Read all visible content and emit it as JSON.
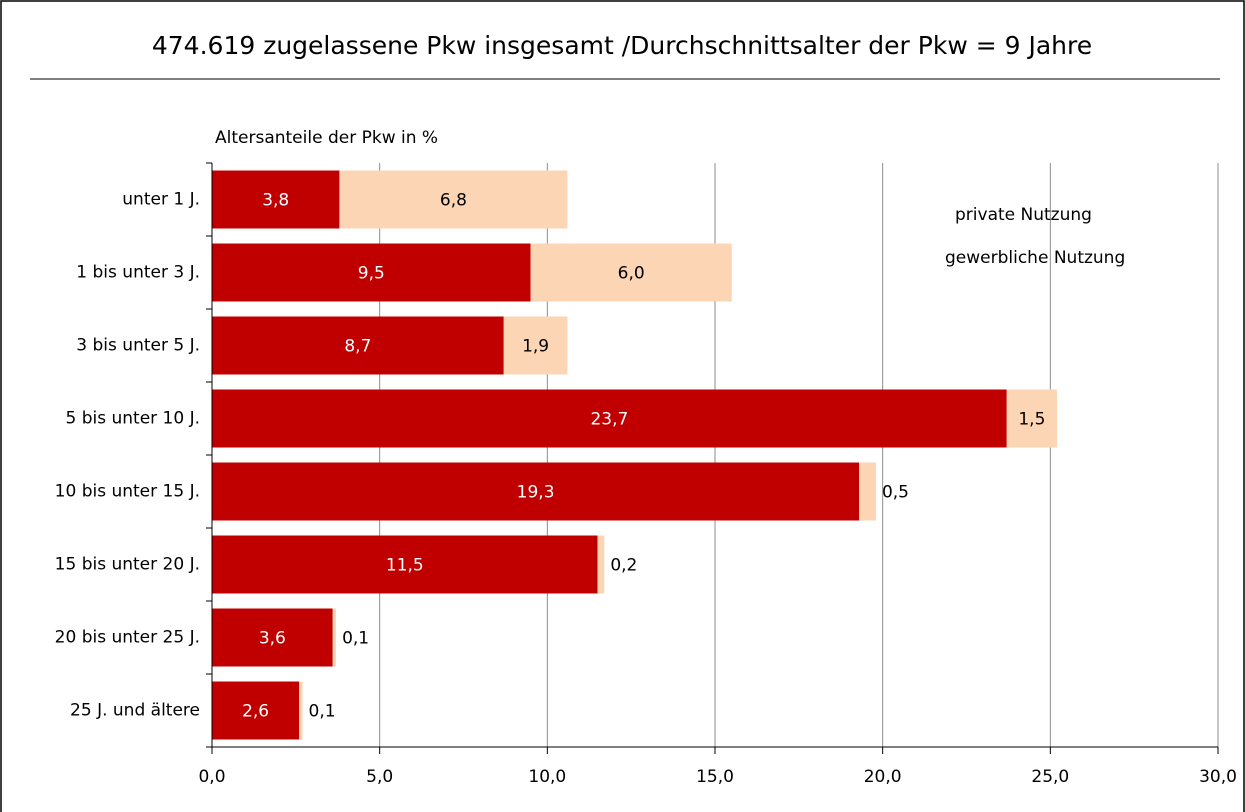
{
  "chart_data": {
    "type": "stacked-barh",
    "title": "474.619 zugelassene Pkw insgesamt /Durchschnittsalter der Pkw = 9 Jahre",
    "subtitle": "Altersanteile der Pkw in %",
    "categories": [
      "unter 1 J.",
      "1 bis unter 3 J.",
      "3 bis unter 5 J.",
      "5 bis unter 10 J.",
      "10 bis unter 15 J.",
      "15 bis unter 20 J.",
      "20 bis unter 25 J.",
      "25 J. und ältere"
    ],
    "series": [
      {
        "name": "private Nutzung",
        "color": "#c00000",
        "values": [
          3.8,
          9.5,
          8.7,
          23.7,
          19.3,
          11.5,
          3.6,
          2.6
        ],
        "value_labels": [
          "3,8",
          "9,5",
          "8,7",
          "23,7",
          "19,3",
          "11,5",
          "3,6",
          "2,6"
        ]
      },
      {
        "name": "gewerbliche Nutzung",
        "color": "#fcd5b4",
        "values": [
          6.8,
          6.0,
          1.9,
          1.5,
          0.5,
          0.2,
          0.1,
          0.1
        ],
        "value_labels": [
          "6,8",
          "6,0",
          "1,9",
          "1,5",
          "0,5",
          "0,2",
          "0,1",
          "0,1"
        ]
      }
    ],
    "xlim": [
      0,
      30
    ],
    "xticks": [
      {
        "value": 0,
        "label": "0,0"
      },
      {
        "value": 5,
        "label": "5,0"
      },
      {
        "value": 10,
        "label": "10,0"
      },
      {
        "value": 15,
        "label": "15,0"
      },
      {
        "value": 20,
        "label": "20,0"
      },
      {
        "value": 25,
        "label": "25,0"
      },
      {
        "value": 30,
        "label": "30,0"
      }
    ],
    "grid": true
  }
}
